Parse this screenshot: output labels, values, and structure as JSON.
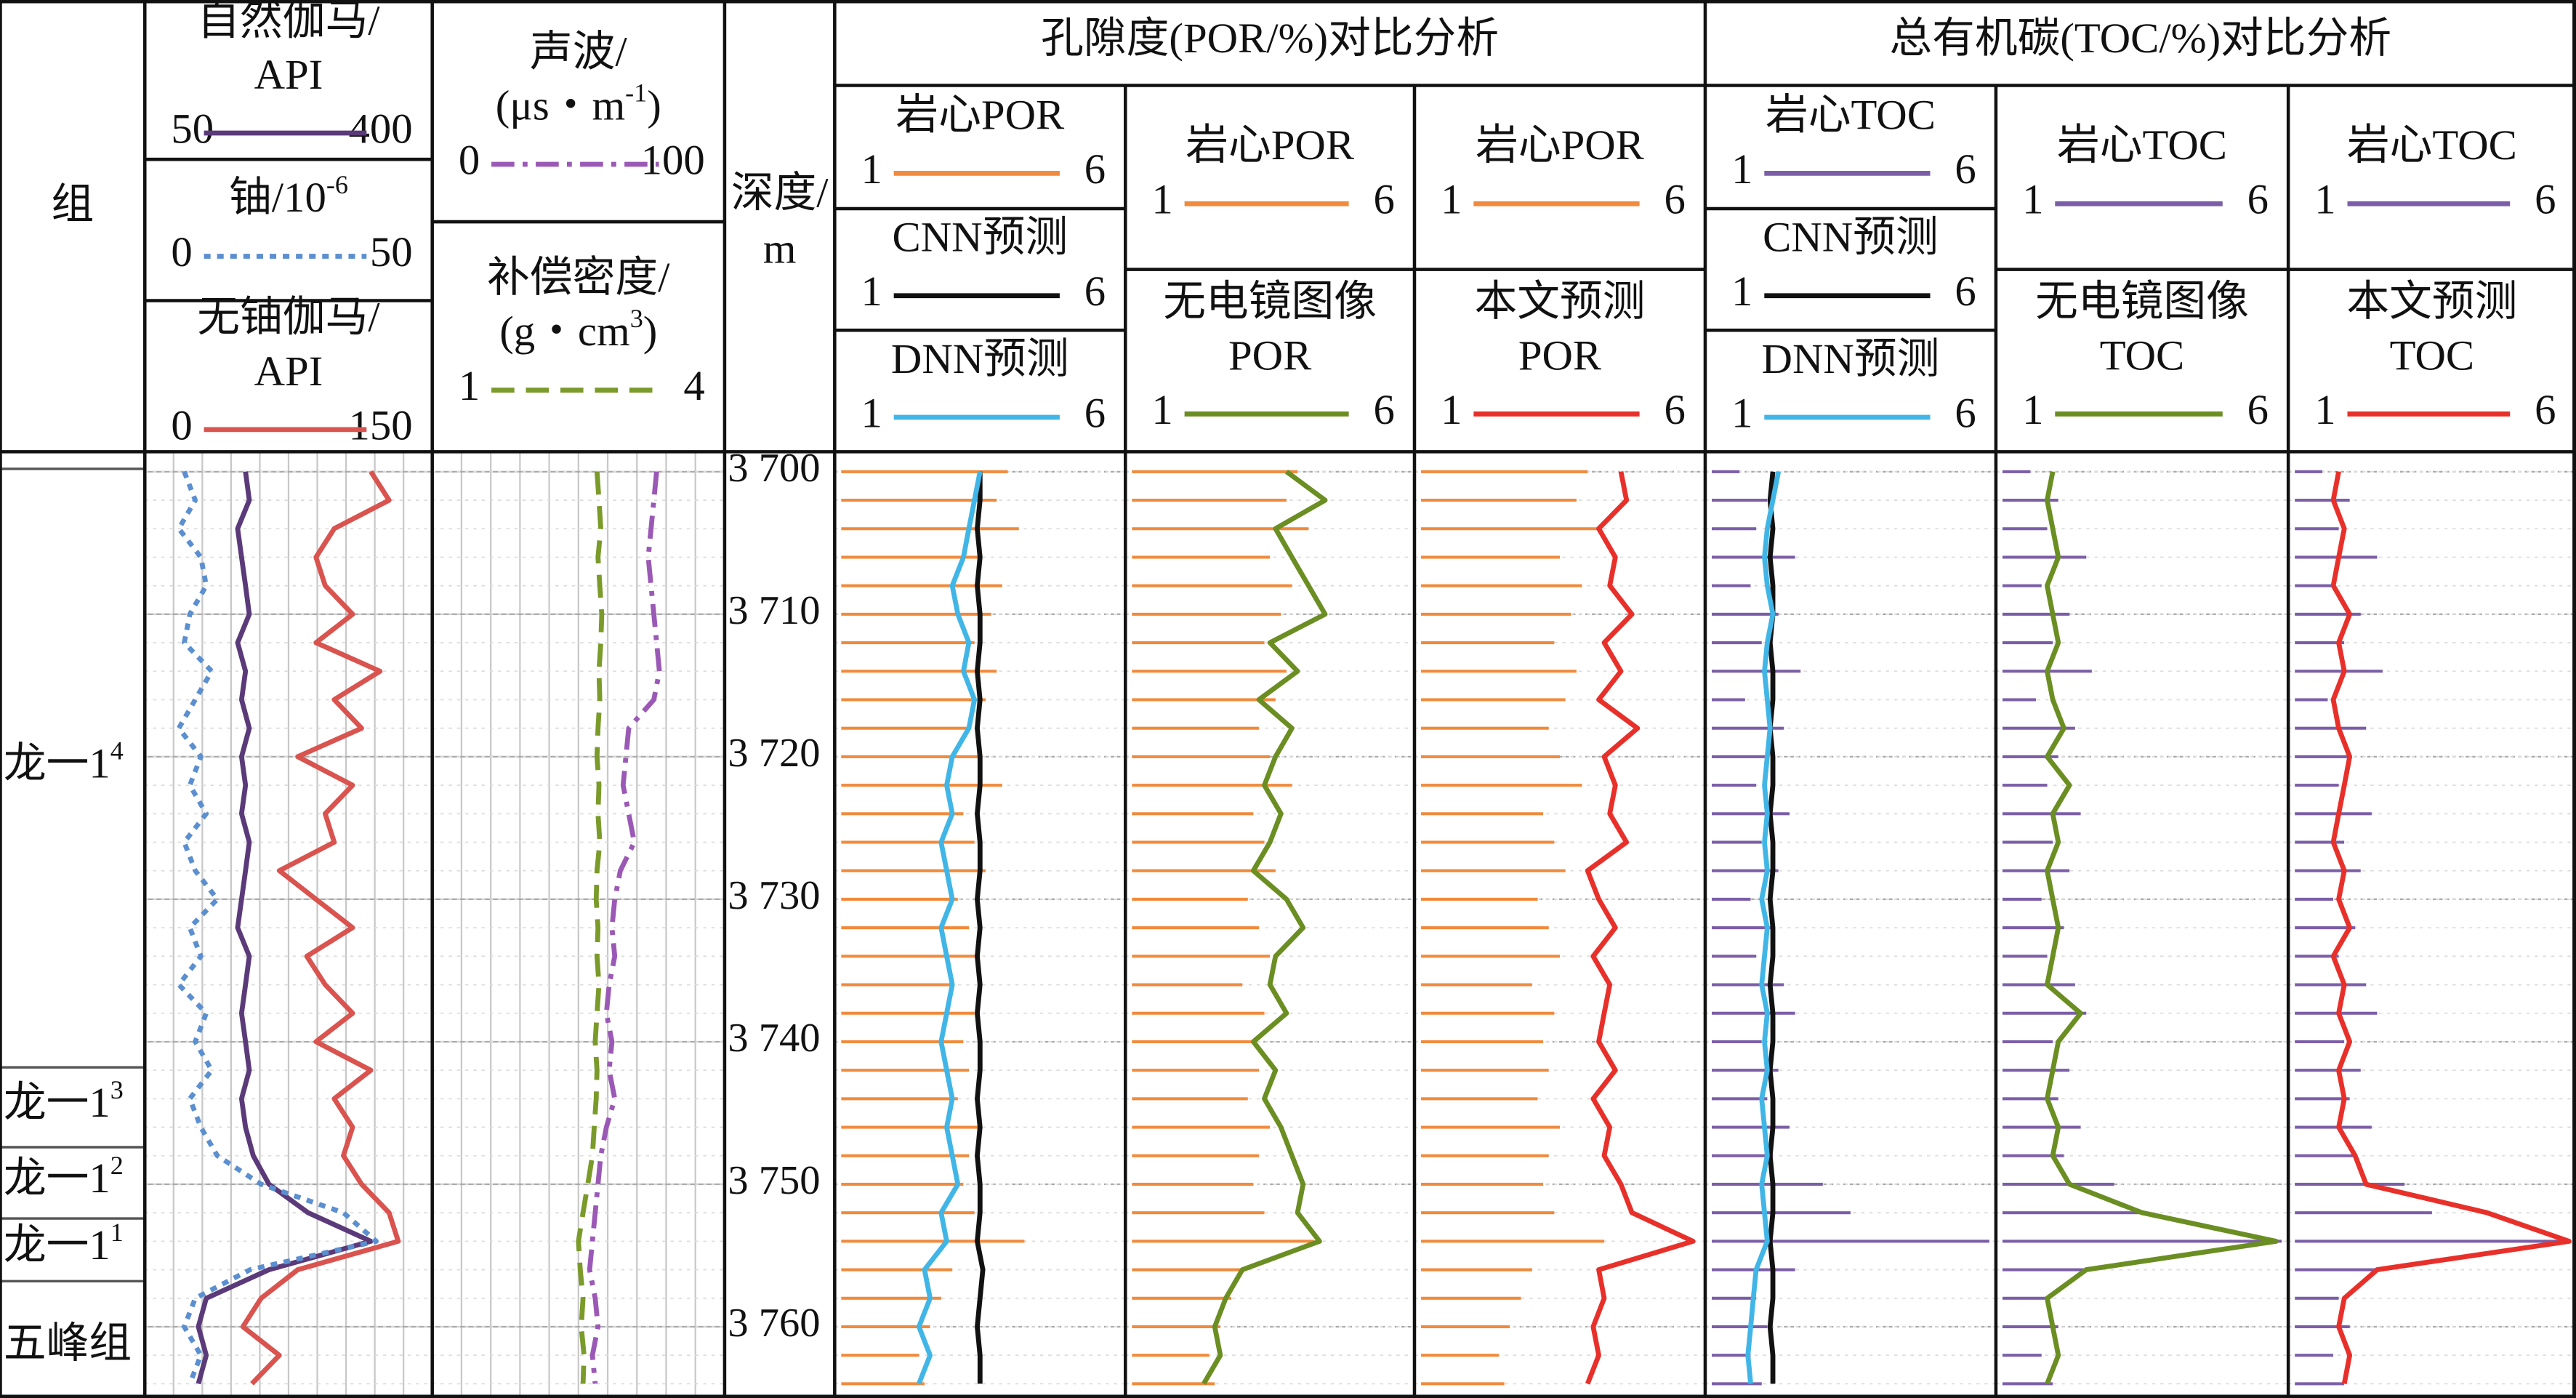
{
  "chart_data": {
    "type": "well-log",
    "ylim": [
      3698.6,
      3765
    ],
    "yticks": [
      {
        "value": 3700,
        "label": "3 700"
      },
      {
        "value": 3710,
        "label": "3 710"
      },
      {
        "value": 3720,
        "label": "3 720"
      },
      {
        "value": 3730,
        "label": "3 730"
      },
      {
        "value": 3740,
        "label": "3 740"
      },
      {
        "value": 3750,
        "label": "3 750"
      },
      {
        "value": 3760,
        "label": "3 760"
      }
    ],
    "depths": [
      3700,
      3702,
      3704,
      3706,
      3708,
      3710,
      3712,
      3714,
      3716,
      3718,
      3720,
      3722,
      3724,
      3726,
      3728,
      3730,
      3732,
      3734,
      3736,
      3738,
      3740,
      3742,
      3744,
      3746,
      3748,
      3750,
      3752,
      3754,
      3756,
      3758,
      3760,
      3762,
      3764
    ],
    "groups": [
      {
        "title": "孔隙度(POR/%)对比分析",
        "tracks": [
          4,
          6
        ]
      },
      {
        "title": "总有机碳(TOC/%)对比分析",
        "tracks": [
          7,
          9
        ]
      }
    ],
    "tracks": [
      {
        "kind": "formation",
        "header": "组",
        "formations": [
          {
            "text": "龙一1",
            "sup": "4"
          },
          {
            "text": "龙一1",
            "sup": "3"
          },
          {
            "text": "龙一1",
            "sup": "2"
          },
          {
            "text": "龙一1",
            "sup": "1"
          },
          {
            "text": "五峰组"
          }
        ],
        "boundaries": [
          3699.8,
          3741.8,
          3747.4,
          3752.4,
          3756.8
        ]
      },
      {
        "kind": "curves",
        "grid": true,
        "curves": [
          {
            "name_lines": [
              "自然伽马/",
              "API"
            ],
            "color": "#5b3a7a",
            "style": "solid",
            "xlim": [
              50,
              400
            ],
            "values": [
              170,
              175,
              160,
              165,
              170,
              175,
              160,
              170,
              165,
              175,
              165,
              170,
              165,
              175,
              170,
              165,
              160,
              175,
              170,
              165,
              170,
              175,
              165,
              170,
              180,
              200,
              250,
              330,
              200,
              120,
              110,
              120,
              110
            ]
          },
          {
            "name_lines": [
              {
                "text": "铀/10",
                "sup": "-6"
              }
            ],
            "color": "#5b8fd0",
            "style": "dot",
            "xlim": [
              0,
              50
            ],
            "values": [
              6,
              8,
              5,
              9,
              10,
              7,
              6,
              11,
              8,
              5,
              9,
              7,
              10,
              6,
              8,
              12,
              7,
              9,
              5,
              10,
              8,
              11,
              7,
              9,
              12,
              20,
              35,
              41,
              18,
              8,
              6,
              9,
              7
            ]
          },
          {
            "name_lines": [
              "无铀伽马/",
              "API"
            ],
            "color": "#d9534f",
            "style": "solid",
            "xlim": [
              0,
              150
            ],
            "values": [
              120,
              130,
              100,
              90,
              95,
              110,
              90,
              125,
              100,
              115,
              80,
              110,
              95,
              100,
              70,
              90,
              110,
              85,
              95,
              110,
              90,
              120,
              100,
              110,
              105,
              115,
              130,
              135,
              80,
              60,
              50,
              70,
              55
            ]
          }
        ]
      },
      {
        "kind": "curves",
        "grid": true,
        "curves": [
          {
            "name_lines": [
              "声波/",
              {
                "text": "(μs・m",
                "sup": "-1",
                "after": ")"
              }
            ],
            "color": "#9b59b6",
            "style": "dashdot",
            "xlim": [
              0,
              100
            ],
            "values": [
              78,
              77,
              76,
              75,
              76,
              77,
              78,
              79,
              77,
              68,
              67,
              66,
              68,
              70,
              65,
              63,
              62,
              63,
              61,
              60,
              62,
              61,
              63,
              60,
              58,
              57,
              56,
              55,
              54,
              56,
              57,
              55,
              56
            ]
          },
          {
            "name_lines": [
              "补偿密度/",
              {
                "text": "(g・cm",
                "sup": "3",
                "after": ")"
              }
            ],
            "color": "#7a9a2a",
            "style": "dash",
            "xlim": [
              1,
              4
            ],
            "values": [
              2.7,
              2.72,
              2.74,
              2.71,
              2.73,
              2.75,
              2.74,
              2.72,
              2.73,
              2.71,
              2.7,
              2.72,
              2.71,
              2.73,
              2.7,
              2.69,
              2.71,
              2.7,
              2.72,
              2.7,
              2.68,
              2.7,
              2.69,
              2.67,
              2.65,
              2.6,
              2.55,
              2.5,
              2.52,
              2.55,
              2.53,
              2.56,
              2.55
            ]
          }
        ]
      },
      {
        "kind": "depth",
        "header_lines": [
          "深度/",
          "m"
        ]
      },
      {
        "kind": "curves",
        "curves": [
          {
            "type": "bar",
            "name_lines": [
              "岩心POR"
            ],
            "color": "#f08a3c",
            "xlim": [
              1,
              6
            ],
            "values": [
              4.0,
              3.8,
              4.2,
              3.5,
              3.9,
              3.7,
              3.4,
              3.8,
              3.6,
              3.3,
              3.5,
              3.9,
              3.2,
              3.4,
              3.6,
              3.1,
              3.3,
              3.5,
              3.0,
              3.4,
              3.2,
              3.3,
              3.1,
              3.5,
              3.3,
              3.2,
              3.4,
              4.3,
              3.0,
              2.8,
              2.6,
              2.4,
              2.5
            ]
          },
          {
            "name_lines": [
              "CNN预测"
            ],
            "color": "#111111",
            "style": "solid",
            "xlim": [
              1,
              6
            ],
            "values": [
              3.5,
              3.5,
              3.45,
              3.5,
              3.45,
              3.5,
              3.5,
              3.45,
              3.5,
              3.45,
              3.5,
              3.5,
              3.45,
              3.5,
              3.5,
              3.45,
              3.5,
              3.45,
              3.5,
              3.45,
              3.5,
              3.5,
              3.45,
              3.5,
              3.45,
              3.5,
              3.5,
              3.45,
              3.55,
              3.5,
              3.45,
              3.5,
              3.5
            ]
          },
          {
            "name_lines": [
              "DNN预测"
            ],
            "color": "#41b6e6",
            "style": "solid",
            "xlim": [
              1,
              6
            ],
            "values": [
              3.5,
              3.4,
              3.3,
              3.2,
              3.0,
              3.1,
              3.3,
              3.2,
              3.4,
              3.3,
              3.0,
              2.9,
              3.0,
              2.8,
              2.9,
              3.0,
              2.8,
              2.9,
              3.0,
              2.9,
              2.8,
              2.9,
              3.0,
              2.9,
              3.0,
              3.1,
              2.8,
              2.9,
              2.5,
              2.6,
              2.4,
              2.6,
              2.4
            ]
          }
        ]
      },
      {
        "kind": "curves",
        "curves": [
          {
            "type": "bar",
            "name_lines": [
              "岩心POR"
            ],
            "color": "#f08a3c",
            "xlim": [
              1,
              6
            ],
            "values": [
              4.0,
              3.8,
              4.2,
              3.5,
              3.9,
              3.7,
              3.4,
              3.8,
              3.6,
              3.3,
              3.5,
              3.9,
              3.2,
              3.4,
              3.6,
              3.1,
              3.3,
              3.5,
              3.0,
              3.4,
              3.2,
              3.3,
              3.1,
              3.5,
              3.3,
              3.2,
              3.4,
              4.3,
              3.0,
              2.8,
              2.6,
              2.4,
              2.5
            ]
          },
          {
            "name_lines": [
              "无电镜图像",
              "POR"
            ],
            "color": "#6b8e23",
            "style": "solid",
            "xlim": [
              1,
              6
            ],
            "values": [
              3.8,
              4.5,
              3.6,
              3.9,
              4.2,
              4.5,
              3.5,
              4.0,
              3.3,
              3.9,
              3.6,
              3.4,
              3.7,
              3.5,
              3.2,
              3.8,
              4.1,
              3.6,
              3.5,
              3.8,
              3.2,
              3.6,
              3.4,
              3.7,
              3.9,
              4.1,
              4.0,
              4.4,
              3.0,
              2.7,
              2.5,
              2.6,
              2.3
            ]
          }
        ]
      },
      {
        "kind": "curves",
        "curves": [
          {
            "type": "bar",
            "name_lines": [
              "岩心POR"
            ],
            "color": "#f08a3c",
            "xlim": [
              1,
              6
            ],
            "values": [
              4.0,
              3.8,
              4.2,
              3.5,
              3.9,
              3.7,
              3.4,
              3.8,
              3.6,
              3.3,
              3.5,
              3.9,
              3.2,
              3.4,
              3.6,
              3.1,
              3.3,
              3.5,
              3.0,
              3.4,
              3.2,
              3.3,
              3.1,
              3.5,
              3.3,
              3.2,
              3.4,
              4.3,
              3.0,
              2.8,
              2.6,
              2.4,
              2.5
            ]
          },
          {
            "name_lines": [
              "本文预测",
              "POR"
            ],
            "label_color": "#e8302a",
            "color": "#e8302a",
            "style": "solid",
            "xlim": [
              1,
              6
            ],
            "values": [
              4.6,
              4.7,
              4.2,
              4.5,
              4.4,
              4.8,
              4.3,
              4.6,
              4.2,
              4.9,
              4.3,
              4.5,
              4.4,
              4.7,
              4.0,
              4.2,
              4.5,
              4.1,
              4.4,
              4.3,
              4.2,
              4.5,
              4.1,
              4.4,
              4.3,
              4.6,
              4.8,
              5.9,
              4.2,
              4.3,
              4.1,
              4.2,
              4.0
            ]
          }
        ]
      },
      {
        "kind": "curves",
        "curves": [
          {
            "type": "bar",
            "name_lines": [
              "岩心TOC"
            ],
            "color": "#7b5ea7",
            "xlim": [
              1,
              6
            ],
            "values": [
              1.5,
              2.0,
              1.8,
              2.5,
              1.7,
              2.2,
              1.9,
              2.6,
              1.6,
              2.3,
              2.0,
              1.8,
              2.4,
              1.9,
              2.2,
              1.7,
              2.1,
              1.8,
              2.3,
              2.5,
              1.9,
              2.2,
              2.0,
              2.4,
              2.1,
              3.0,
              3.5,
              6.0,
              2.5,
              1.8,
              2.0,
              1.7,
              1.9
            ]
          },
          {
            "name_lines": [
              "CNN预测"
            ],
            "color": "#111111",
            "style": "solid",
            "xlim": [
              1,
              6
            ],
            "values": [
              2.1,
              2.05,
              2.1,
              2.05,
              2.1,
              2.1,
              2.05,
              2.1,
              2.1,
              2.05,
              2.1,
              2.1,
              2.05,
              2.1,
              2.1,
              2.05,
              2.1,
              2.1,
              2.05,
              2.1,
              2.1,
              2.05,
              2.1,
              2.1,
              2.05,
              2.1,
              2.1,
              2.05,
              2.1,
              2.1,
              2.05,
              2.1,
              2.1
            ]
          },
          {
            "name_lines": [
              "DNN预测"
            ],
            "color": "#41b6e6",
            "style": "solid",
            "xlim": [
              1,
              6
            ],
            "values": [
              2.2,
              2.1,
              2.0,
              1.95,
              2.0,
              2.1,
              2.0,
              1.95,
              2.0,
              2.05,
              2.0,
              1.95,
              2.0,
              1.95,
              2.0,
              1.9,
              2.0,
              1.95,
              1.9,
              2.0,
              1.95,
              2.0,
              1.9,
              1.95,
              2.0,
              1.9,
              1.95,
              2.0,
              1.8,
              1.75,
              1.7,
              1.65,
              1.7
            ]
          }
        ]
      },
      {
        "kind": "curves",
        "curves": [
          {
            "type": "bar",
            "name_lines": [
              "岩心TOC"
            ],
            "color": "#7b5ea7",
            "xlim": [
              1,
              6
            ],
            "values": [
              1.5,
              2.0,
              1.8,
              2.5,
              1.7,
              2.2,
              1.9,
              2.6,
              1.6,
              2.3,
              2.0,
              1.8,
              2.4,
              1.9,
              2.2,
              1.7,
              2.1,
              1.8,
              2.3,
              2.5,
              1.9,
              2.2,
              2.0,
              2.4,
              2.1,
              3.0,
              3.5,
              6.0,
              2.5,
              1.8,
              2.0,
              1.7,
              1.9
            ]
          },
          {
            "name_lines": [
              "无电镜图像",
              "TOC"
            ],
            "color": "#6b8e23",
            "style": "solid",
            "xlim": [
              1,
              6
            ],
            "values": [
              1.9,
              1.8,
              1.9,
              2.0,
              1.8,
              1.9,
              2.0,
              1.8,
              1.9,
              2.1,
              1.8,
              2.2,
              1.9,
              2.0,
              1.8,
              1.9,
              2.0,
              1.9,
              1.8,
              2.4,
              2.0,
              1.9,
              1.8,
              2.0,
              1.9,
              2.2,
              3.5,
              5.9,
              2.5,
              1.8,
              1.9,
              2.0,
              1.8
            ]
          }
        ]
      },
      {
        "kind": "curves",
        "curves": [
          {
            "type": "bar",
            "name_lines": [
              "岩心TOC"
            ],
            "color": "#7b5ea7",
            "xlim": [
              1,
              6
            ],
            "values": [
              1.5,
              2.0,
              1.8,
              2.5,
              1.7,
              2.2,
              1.9,
              2.6,
              1.6,
              2.3,
              2.0,
              1.8,
              2.4,
              1.9,
              2.2,
              1.7,
              2.1,
              1.8,
              2.3,
              2.5,
              1.9,
              2.2,
              2.0,
              2.4,
              2.1,
              3.0,
              3.5,
              6.0,
              2.5,
              1.8,
              2.0,
              1.7,
              1.9
            ]
          },
          {
            "name_lines": [
              "本文预测",
              "TOC"
            ],
            "label_color": "#e8302a",
            "color": "#e8302a",
            "style": "solid",
            "xlim": [
              1,
              6
            ],
            "values": [
              1.8,
              1.7,
              1.9,
              1.8,
              1.7,
              2.0,
              1.8,
              1.9,
              1.7,
              1.8,
              2.0,
              1.9,
              1.8,
              1.7,
              1.9,
              1.8,
              2.0,
              1.7,
              1.9,
              1.8,
              2.0,
              1.8,
              1.9,
              1.8,
              2.1,
              2.3,
              4.5,
              6.0,
              2.5,
              1.9,
              1.8,
              2.0,
              1.9
            ]
          }
        ]
      }
    ]
  }
}
